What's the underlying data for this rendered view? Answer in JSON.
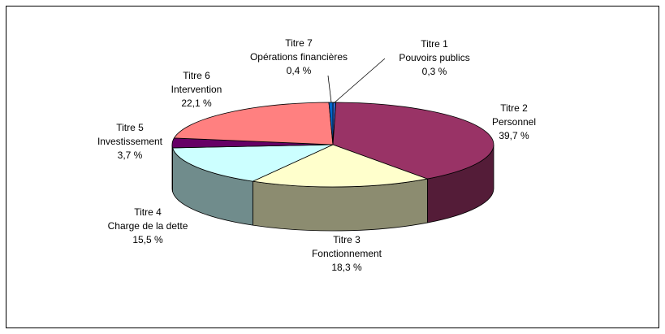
{
  "chart_data": {
    "type": "pie3d",
    "categories": [
      "Titre 1",
      "Titre 2",
      "Titre 3",
      "Titre 4",
      "Titre 5",
      "Titre 6",
      "Titre 7"
    ],
    "descriptions": [
      "Pouvoirs publics",
      "Personnel",
      "Fonctionnement",
      "Charge de la dette",
      "Investissement",
      "Intervention",
      "Opérations financières"
    ],
    "values": [
      0.3,
      39.7,
      18.3,
      15.5,
      3.7,
      22.1,
      0.4
    ],
    "value_labels": [
      "0,3 %",
      "39,7 %",
      "18,3 %",
      "15,5 %",
      "3,7 %",
      "22,1 %",
      "0,4 %"
    ],
    "colors": [
      "#3366cc",
      "#993366",
      "#ffffcc",
      "#ccffff",
      "#660066",
      "#ff8080",
      "#0066cc"
    ]
  }
}
